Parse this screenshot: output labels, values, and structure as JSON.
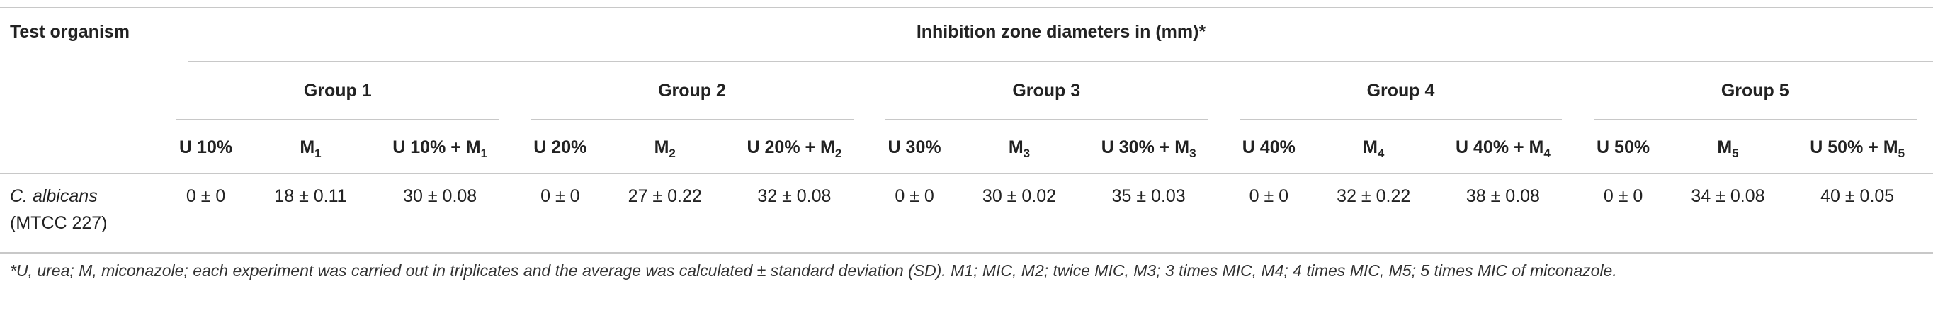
{
  "table": {
    "header": {
      "row_label": "Test organism",
      "span_title": "Inhibition zone diameters in (mm)*"
    },
    "groups": [
      "Group 1",
      "Group 2",
      "Group 3",
      "Group 4",
      "Group 5"
    ],
    "columns": [
      {
        "main": "U 10%"
      },
      {
        "main": "M",
        "sub": "1"
      },
      {
        "main": "U 10% + M",
        "sub": "1"
      },
      {
        "main": "U 20%"
      },
      {
        "main": "M",
        "sub": "2"
      },
      {
        "main": "U 20% + M",
        "sub": "2"
      },
      {
        "main": "U 30%"
      },
      {
        "main": "M",
        "sub": "3"
      },
      {
        "main": "U 30% + M",
        "sub": "3"
      },
      {
        "main": "U 40%"
      },
      {
        "main": "M",
        "sub": "4"
      },
      {
        "main": "U 40% + M",
        "sub": "4"
      },
      {
        "main": "U 50%"
      },
      {
        "main": "M",
        "sub": "5"
      },
      {
        "main": "U 50% + M",
        "sub": "5"
      }
    ],
    "rows": [
      {
        "organism": "C. albicans",
        "strain": "(MTCC 227)",
        "cells": [
          "0 ± 0",
          "18 ± 0.11",
          "30 ± 0.08",
          "0 ± 0",
          "27 ± 0.22",
          "32 ± 0.08",
          "0 ± 0",
          "30 ± 0.02",
          "35 ± 0.03",
          "0 ± 0",
          "32 ± 0.22",
          "38 ± 0.08",
          "0 ± 0",
          "34 ± 0.08",
          "40 ± 0.05"
        ]
      }
    ],
    "footnote": "*U, urea; M, miconazole; each experiment was carried out in triplicates and the average was calculated ± standard deviation (SD). M1; MIC, M2; twice MIC, M3; 3 times MIC, M4; 4 times MIC, M5; 5 times MIC of miconazole."
  }
}
